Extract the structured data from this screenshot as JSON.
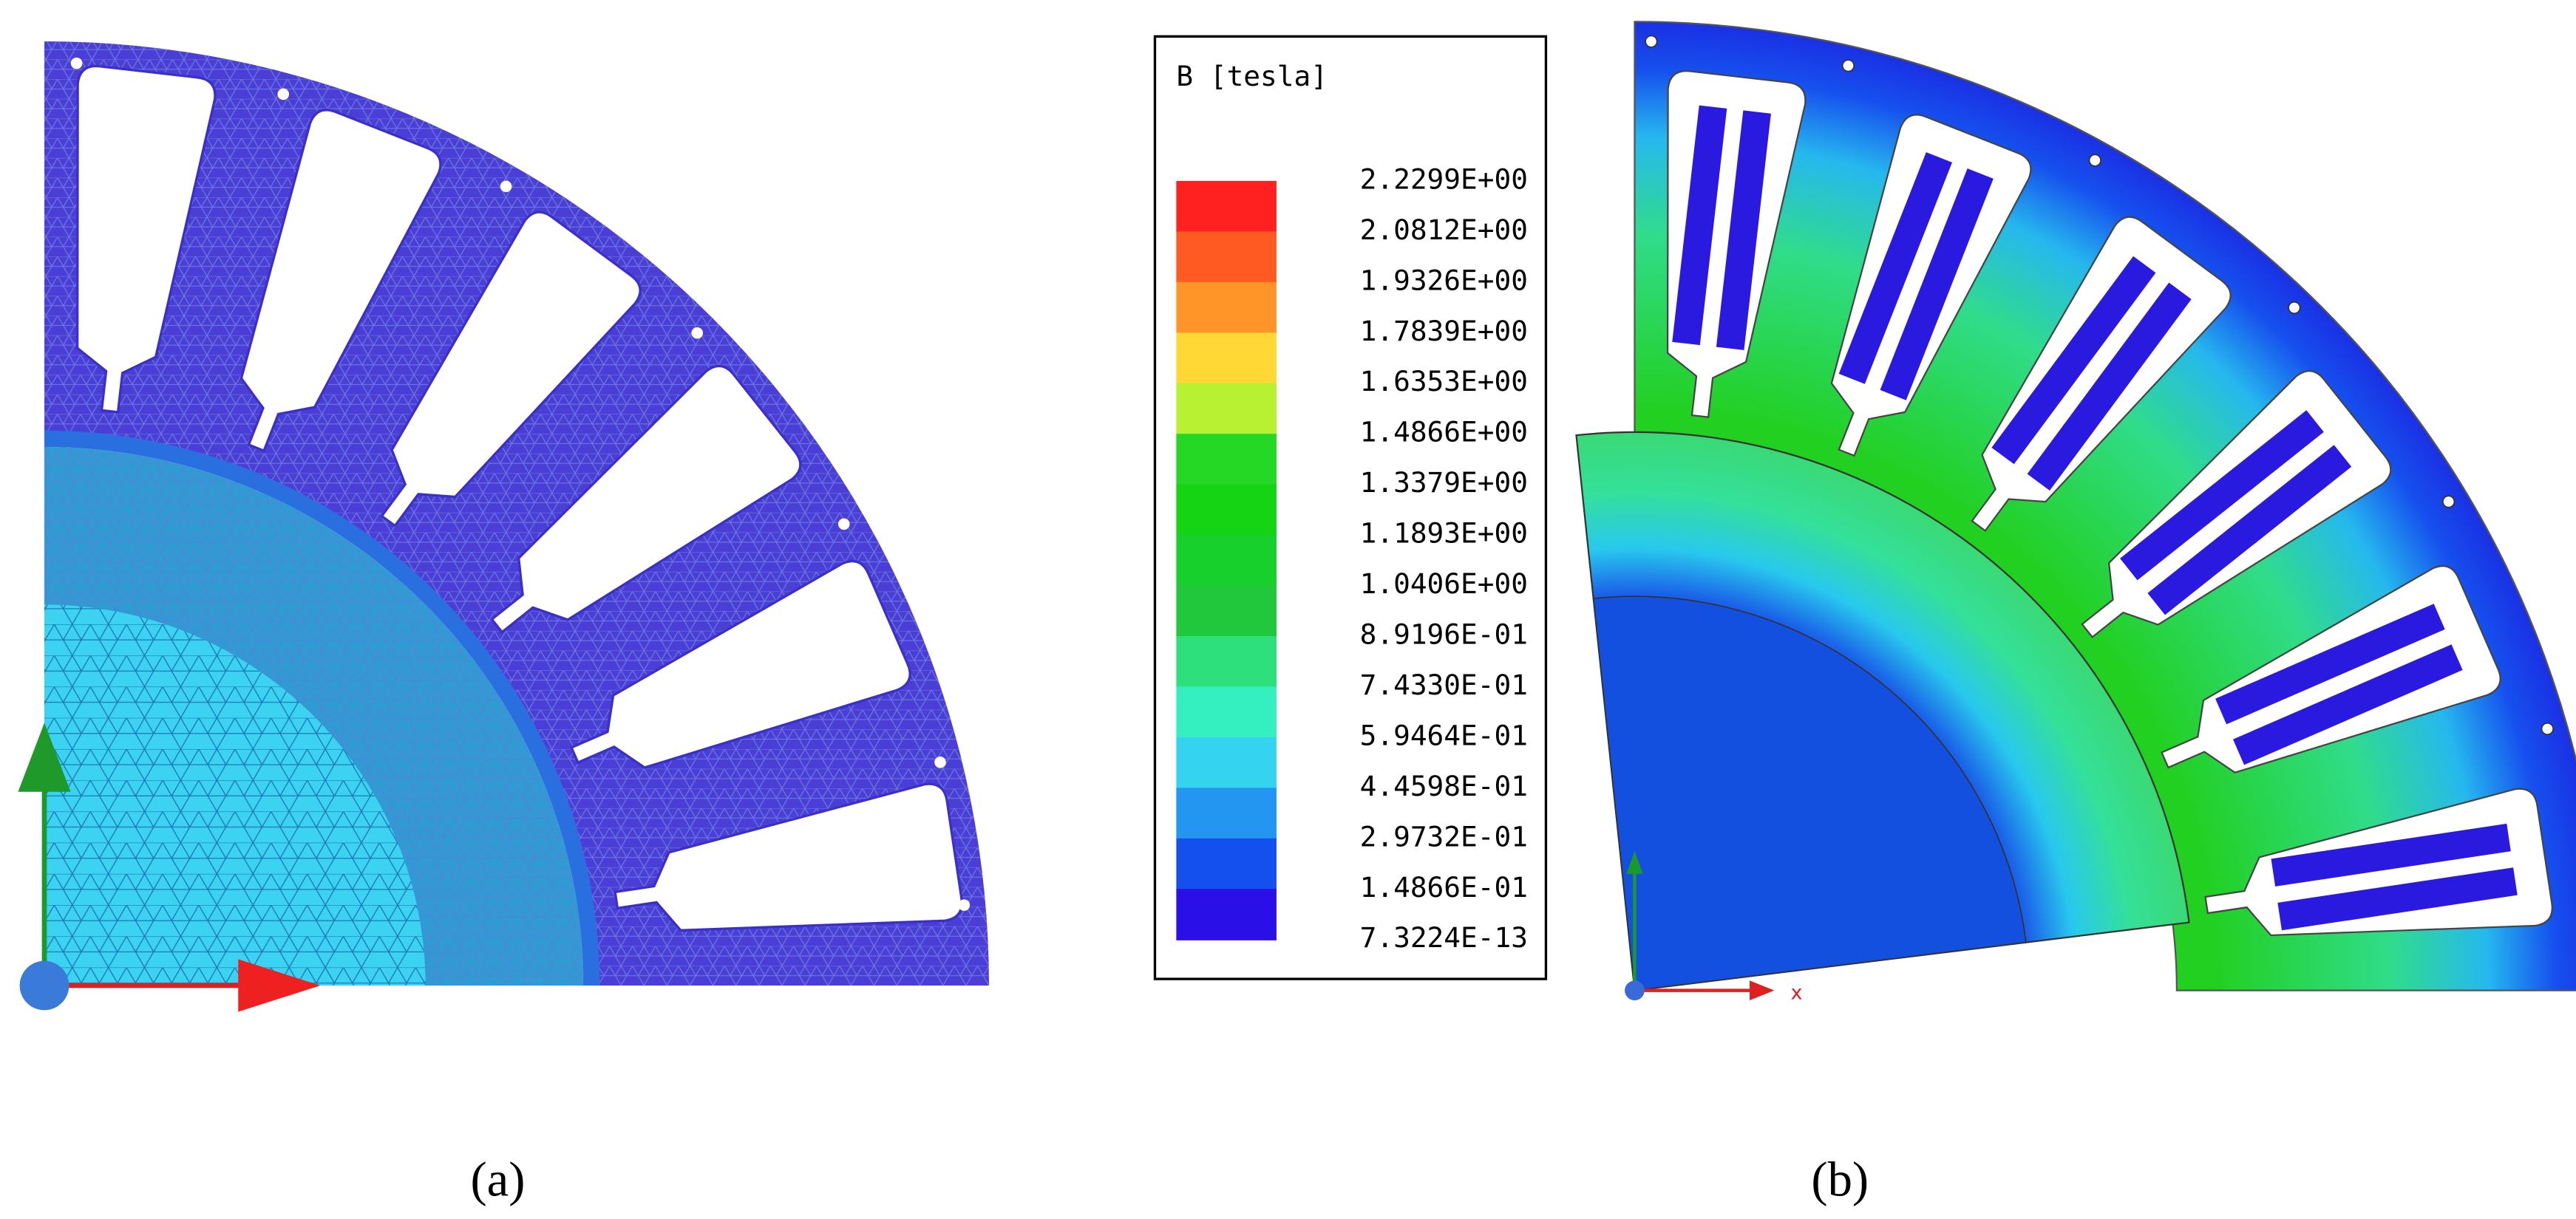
{
  "panel_a": {
    "caption": "(a)"
  },
  "panel_b": {
    "caption": "(b)",
    "axis_label": "x"
  },
  "legend": {
    "title": "B [tesla]",
    "labels": [
      "2.2299E+00",
      "2.0812E+00",
      "1.9326E+00",
      "1.7839E+00",
      "1.6353E+00",
      "1.4866E+00",
      "1.3379E+00",
      "1.1893E+00",
      "1.0406E+00",
      "8.9196E-01",
      "7.4330E-01",
      "5.9464E-01",
      "4.4598E-01",
      "2.9732E-01",
      "1.4866E-01",
      "7.3224E-13"
    ],
    "colors": [
      "#ff2020",
      "#ff5a22",
      "#ff9428",
      "#ffd835",
      "#b8f032",
      "#26d826",
      "#14d414",
      "#18d02c",
      "#22c83c",
      "#2ee07c",
      "#34f0c0",
      "#34d4f0",
      "#2296f0",
      "#1450ee",
      "#2a10e6"
    ]
  }
}
